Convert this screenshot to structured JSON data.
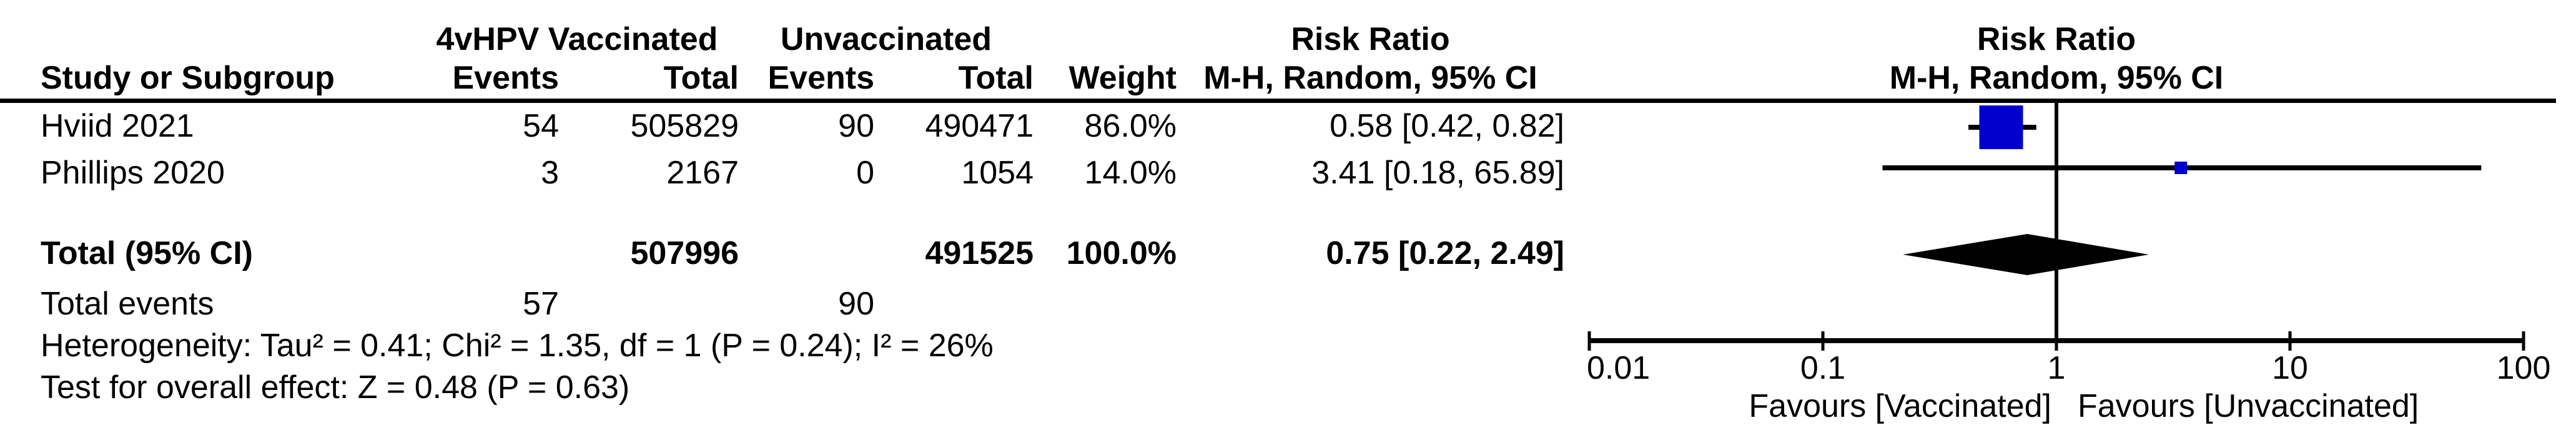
{
  "table": {
    "group_headers": {
      "vaccinated": "4vHPV Vaccinated",
      "unvaccinated": "Unvaccinated",
      "risk_ratio": "Risk Ratio"
    },
    "column_headers": {
      "study": "Study or Subgroup",
      "events_vacc": "Events",
      "total_vacc": "Total",
      "events_unvacc": "Events",
      "total_unvacc": "Total",
      "weight": "Weight",
      "ci": "M-H, Random, 95% CI"
    },
    "rows": [
      {
        "study": "Hviid 2021",
        "events_vacc": "54",
        "total_vacc": "505829",
        "events_unvacc": "90",
        "total_unvacc": "490471",
        "weight": "86.0%",
        "ci": "0.58 [0.42, 0.82]"
      },
      {
        "study": "Phillips 2020",
        "events_vacc": "3",
        "total_vacc": "2167",
        "events_unvacc": "0",
        "total_unvacc": "1054",
        "weight": "14.0%",
        "ci": "3.41 [0.18, 65.89]"
      }
    ],
    "total_row": {
      "label": "Total (95% CI)",
      "total_vacc": "507996",
      "total_unvacc": "491525",
      "weight": "100.0%",
      "ci": "0.75 [0.22, 2.49]"
    },
    "total_events_row": {
      "label": "Total events",
      "events_vacc": "57",
      "events_unvacc": "90"
    },
    "footnotes": {
      "heterogeneity": "Heterogeneity: Tau² = 0.41; Chi² = 1.35, df = 1 (P = 0.24); I² = 26%",
      "overall_effect": "Test for overall effect: Z = 0.48 (P = 0.63)"
    }
  },
  "plot_header": {
    "title": "Risk Ratio",
    "subtitle": "M-H, Random, 95% CI"
  },
  "chart_data": {
    "type": "forest",
    "effect_measure": "Risk Ratio",
    "method": "M-H, Random, 95% CI",
    "x_scale": "log10",
    "x_ticks": [
      0.01,
      0.1,
      1,
      10,
      100
    ],
    "x_tick_labels": [
      "0.01",
      "0.1",
      "1",
      "10",
      "100"
    ],
    "xlim": [
      0.01,
      100
    ],
    "null_line": 1,
    "favours_left": "Favours [Vaccinated]",
    "favours_right": "Favours [Unvaccinated]",
    "marker_color": "#0000cc",
    "studies": [
      {
        "name": "Hviid 2021",
        "events_vaccinated": 54,
        "total_vaccinated": 505829,
        "events_unvaccinated": 90,
        "total_unvaccinated": 490471,
        "weight_pct": 86.0,
        "rr": 0.58,
        "ci_low": 0.42,
        "ci_high": 0.82
      },
      {
        "name": "Phillips 2020",
        "events_vaccinated": 3,
        "total_vaccinated": 2167,
        "events_unvaccinated": 0,
        "total_unvaccinated": 1054,
        "weight_pct": 14.0,
        "rr": 3.41,
        "ci_low": 0.18,
        "ci_high": 65.89
      }
    ],
    "total": {
      "label": "Total (95% CI)",
      "total_vaccinated": 507996,
      "total_unvaccinated": 491525,
      "weight_pct": 100.0,
      "rr": 0.75,
      "ci_low": 0.22,
      "ci_high": 2.49,
      "total_events_vaccinated": 57,
      "total_events_unvaccinated": 90
    },
    "heterogeneity": {
      "tau2": 0.41,
      "chi2": 1.35,
      "df": 1,
      "p": 0.24,
      "i2_pct": 26
    },
    "overall_effect": {
      "z": 0.48,
      "p": 0.63
    }
  }
}
